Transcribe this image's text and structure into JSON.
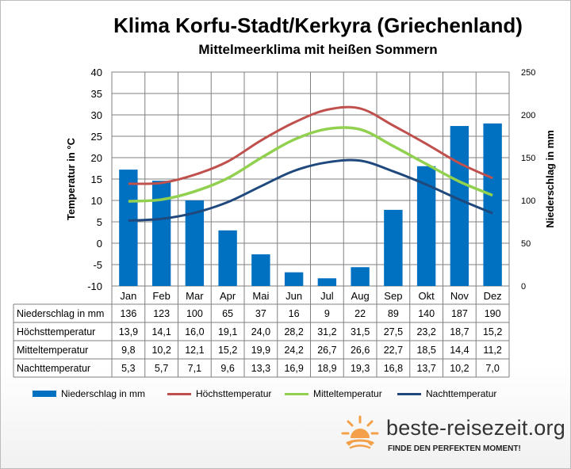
{
  "title": "Klima Korfu-Stadt/Kerkyra (Griechenland)",
  "subtitle": "Mittelmeerklima mit heißen Sommern",
  "colors": {
    "precipitation": "#0070c0",
    "max_temp": "#c0504d",
    "mean_temp": "#92d050",
    "min_temp": "#1f497d",
    "grid": "#808080",
    "sun_icon": "#f4a04a"
  },
  "chart_data": {
    "type": "bar",
    "categories": [
      "Jan",
      "Feb",
      "Mar",
      "Apr",
      "Mai",
      "Jun",
      "Jul",
      "Aug",
      "Sep",
      "Okt",
      "Nov",
      "Dez"
    ],
    "ylabel_left": "Temperatur in °C",
    "ylabel_right": "Niederschlag in mm",
    "ylim_left": [
      -10,
      40
    ],
    "ylim_right": [
      0,
      250
    ],
    "yticks_left": [
      "40",
      "35",
      "30",
      "25",
      "20",
      "15",
      "10",
      "5",
      "0",
      "-5",
      "-10"
    ],
    "yticks_right": [
      "250",
      "200",
      "150",
      "100",
      "50",
      "0"
    ],
    "grid": true,
    "legend_position": "bottom",
    "series": [
      {
        "name": "Niederschlag in mm",
        "type": "bar",
        "axis": "right",
        "values": [
          136,
          123,
          100,
          65,
          37,
          16,
          9,
          22,
          89,
          140,
          187,
          190
        ],
        "labels": [
          "136",
          "123",
          "100",
          "65",
          "37",
          "16",
          "9",
          "22",
          "89",
          "140",
          "187",
          "190"
        ]
      },
      {
        "name": "Höchsttemperatur",
        "type": "line",
        "axis": "left",
        "values": [
          13.9,
          14.1,
          16.0,
          19.1,
          24.0,
          28.2,
          31.2,
          31.5,
          27.5,
          23.2,
          18.7,
          15.2
        ],
        "labels": [
          "13,9",
          "14,1",
          "16,0",
          "19,1",
          "24,0",
          "28,2",
          "31,2",
          "31,5",
          "27,5",
          "23,2",
          "18,7",
          "15,2"
        ]
      },
      {
        "name": "Mitteltemperatur",
        "type": "line",
        "axis": "left",
        "values": [
          9.8,
          10.2,
          12.1,
          15.2,
          19.9,
          24.2,
          26.7,
          26.6,
          22.7,
          18.5,
          14.4,
          11.2
        ],
        "labels": [
          "9,8",
          "10,2",
          "12,1",
          "15,2",
          "19,9",
          "24,2",
          "26,7",
          "26,6",
          "22,7",
          "18,5",
          "14,4",
          "11,2"
        ]
      },
      {
        "name": "Nachttemperatur",
        "type": "line",
        "axis": "left",
        "values": [
          5.3,
          5.7,
          7.1,
          9.6,
          13.3,
          16.9,
          18.9,
          19.3,
          16.8,
          13.7,
          10.2,
          7.0
        ],
        "labels": [
          "5,3",
          "5,7",
          "7,1",
          "9,6",
          "13,3",
          "16,9",
          "18,9",
          "19,3",
          "16,8",
          "13,7",
          "10,2",
          "7,0"
        ]
      }
    ]
  },
  "logo": {
    "name": "beste-reisezeit.org",
    "tagline": "FINDE DEN PERFEKTEN MOMENT!"
  }
}
